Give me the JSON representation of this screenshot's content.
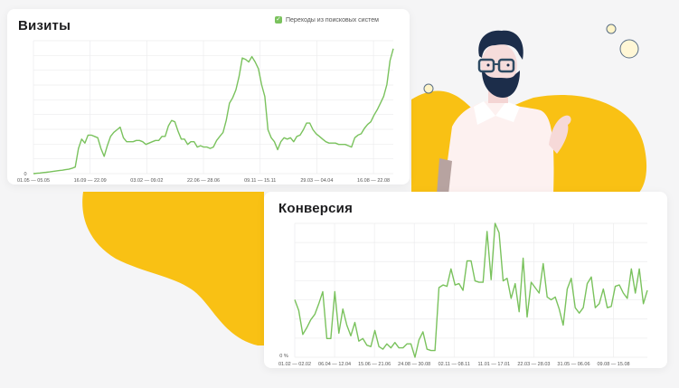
{
  "visits_card": {
    "title": "Визиты",
    "legend": {
      "label": "Переходы из поисковых систем",
      "checked": true,
      "color": "#7ac25d"
    }
  },
  "conversion_card": {
    "title": "Конверсия"
  },
  "colors": {
    "background": "#f5f5f6",
    "accent_yellow": "#f9c114",
    "line_green": "#7ac25d",
    "grid": "#ececee",
    "hair": "#1c2d4a"
  },
  "chart_data": [
    {
      "type": "line",
      "title": "Визиты",
      "xlabel": "",
      "ylabel": "",
      "y_tick_labels": [
        "0"
      ],
      "x_tick_labels": [
        "01.05 — 05.05",
        "16.09 — 22.09",
        "03.02 — 09.02",
        "22.06 — 28.06",
        "09.11 — 15.11",
        "29.03 — 04.04",
        "16.08 — 22.08"
      ],
      "grid": true,
      "legend": [
        "Переходы из поисковых систем"
      ],
      "legend_position": "top-right",
      "ylim": [
        0,
        100
      ],
      "series": [
        {
          "name": "Переходы из поисковых систем",
          "values": [
            0,
            0.3,
            0.5,
            0.8,
            1,
            1.3,
            1.6,
            2,
            2.3,
            2.6,
            3,
            3.3,
            4,
            5,
            19,
            26,
            23,
            29,
            29,
            28,
            27,
            19,
            13,
            21,
            28,
            31,
            33,
            35,
            27,
            24,
            24,
            24,
            25,
            25,
            24,
            22,
            23,
            24,
            25,
            25,
            28,
            28,
            36,
            40,
            39,
            32,
            26,
            26,
            22,
            24,
            24,
            20,
            21,
            20,
            20,
            19,
            20,
            25,
            28,
            31,
            40,
            53,
            57,
            63,
            73,
            87,
            86,
            84,
            88,
            84,
            79,
            67,
            58,
            33,
            27,
            24,
            18,
            24,
            27,
            26,
            27,
            24,
            28,
            29,
            33,
            38,
            38,
            33,
            30,
            28,
            26,
            24,
            23,
            23,
            23,
            22,
            22,
            22,
            21,
            20,
            27,
            29,
            30,
            34,
            37,
            39,
            44,
            48,
            53,
            58,
            67,
            85,
            94
          ]
        }
      ]
    },
    {
      "type": "line",
      "title": "Конверсия",
      "xlabel": "",
      "ylabel": "",
      "y_tick_labels": [
        "0 %"
      ],
      "x_tick_labels": [
        "01.02 — 02.02",
        "06.04 — 12.04",
        "15.06 — 21.06",
        "24.08 — 30.08",
        "02.11 — 08.11",
        "11.01 — 17.01",
        "22.03 — 28.03",
        "31.05 — 06.06",
        "09.08 — 15.08"
      ],
      "grid": true,
      "ylim": [
        0,
        100
      ],
      "series": [
        {
          "name": "Конверсия",
          "values": [
            43,
            35,
            17,
            22,
            28,
            32,
            40,
            49,
            14,
            14,
            49,
            18,
            36,
            24,
            16,
            26,
            12,
            14,
            9,
            8,
            20,
            8,
            6,
            10,
            7,
            11,
            7,
            7,
            10,
            10,
            0,
            13,
            19,
            6,
            5,
            5,
            52,
            54,
            53,
            66,
            54,
            55,
            50,
            72,
            72,
            57,
            56,
            56,
            94,
            58,
            100,
            93,
            57,
            59,
            44,
            55,
            34,
            74,
            30,
            56,
            52,
            48,
            70,
            45,
            43,
            45,
            36,
            24,
            51,
            59,
            37,
            33,
            37,
            55,
            60,
            37,
            40,
            51,
            37,
            38,
            53,
            54,
            48,
            44,
            66,
            48,
            66,
            40,
            50
          ]
        }
      ]
    }
  ]
}
